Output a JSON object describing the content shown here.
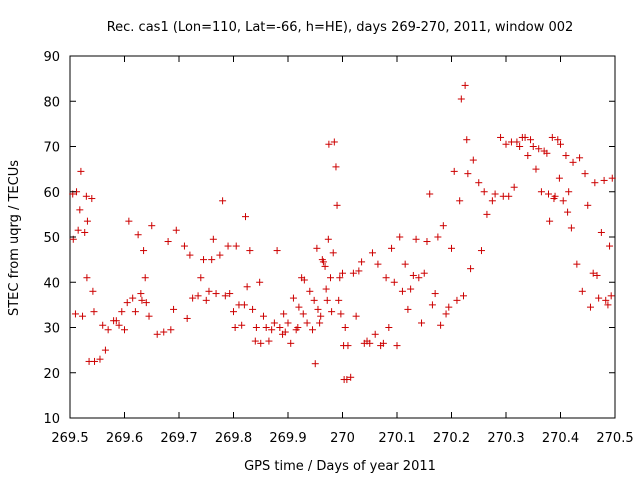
{
  "chart_data": {
    "type": "scatter",
    "title": "Rec. cas1 (Lon=110, Lat=-66, h=HE), days 269-270, 2011, window 002",
    "xlabel": "GPS time / Days of year 2011",
    "ylabel": "STEC from uqrg / TECUs",
    "xlim": [
      269.5,
      270.5
    ],
    "ylim": [
      10,
      90
    ],
    "x_ticks": [
      269.5,
      269.6,
      269.7,
      269.8,
      269.9,
      270.0,
      270.1,
      270.2,
      270.3,
      270.4,
      270.5
    ],
    "x_tick_labels": [
      "269.5",
      "269.6",
      "269.7",
      "269.8",
      "269.9",
      "270",
      "270.1",
      "270.2",
      "270.3",
      "270.4",
      "270.5"
    ],
    "y_ticks": [
      10,
      20,
      30,
      40,
      50,
      60,
      70,
      80,
      90
    ],
    "y_tick_labels": [
      "10",
      "20",
      "30",
      "40",
      "50",
      "60",
      "70",
      "80",
      "90"
    ],
    "grid": false,
    "marker": "plus",
    "color": "#cc0000",
    "points": [
      [
        269.505,
        59.5
      ],
      [
        269.506,
        49.5
      ],
      [
        269.51,
        33
      ],
      [
        269.512,
        60
      ],
      [
        269.515,
        51.5
      ],
      [
        269.518,
        56
      ],
      [
        269.52,
        64.5
      ],
      [
        269.523,
        32.5
      ],
      [
        269.527,
        51
      ],
      [
        269.53,
        59
      ],
      [
        269.531,
        41
      ],
      [
        269.532,
        53.5
      ],
      [
        269.535,
        22.5
      ],
      [
        269.54,
        58.5
      ],
      [
        269.542,
        38
      ],
      [
        269.544,
        33.5
      ],
      [
        269.545,
        22.5
      ],
      [
        269.555,
        23
      ],
      [
        269.56,
        30.5
      ],
      [
        269.565,
        25
      ],
      [
        269.57,
        29.5
      ],
      [
        269.58,
        31.5
      ],
      [
        269.585,
        31.5
      ],
      [
        269.59,
        30.5
      ],
      [
        269.595,
        33.5
      ],
      [
        269.6,
        29.5
      ],
      [
        269.605,
        35.5
      ],
      [
        269.608,
        53.5
      ],
      [
        269.615,
        36.5
      ],
      [
        269.62,
        33.5
      ],
      [
        269.625,
        50.5
      ],
      [
        269.63,
        37.5
      ],
      [
        269.632,
        36
      ],
      [
        269.635,
        47
      ],
      [
        269.638,
        41
      ],
      [
        269.64,
        35.5
      ],
      [
        269.645,
        32.5
      ],
      [
        269.65,
        52.5
      ],
      [
        269.66,
        28.5
      ],
      [
        269.672,
        29
      ],
      [
        269.68,
        49
      ],
      [
        269.685,
        29.5
      ],
      [
        269.69,
        34
      ],
      [
        269.695,
        51.5
      ],
      [
        269.71,
        48
      ],
      [
        269.715,
        32
      ],
      [
        269.72,
        46
      ],
      [
        269.725,
        36.5
      ],
      [
        269.735,
        37
      ],
      [
        269.74,
        41
      ],
      [
        269.745,
        45
      ],
      [
        269.75,
        36
      ],
      [
        269.755,
        38
      ],
      [
        269.76,
        45
      ],
      [
        269.763,
        49.5
      ],
      [
        269.768,
        37.5
      ],
      [
        269.775,
        46
      ],
      [
        269.78,
        58
      ],
      [
        269.785,
        37
      ],
      [
        269.79,
        48
      ],
      [
        269.793,
        37.5
      ],
      [
        269.8,
        33.5
      ],
      [
        269.803,
        30
      ],
      [
        269.805,
        48
      ],
      [
        269.81,
        35
      ],
      [
        269.815,
        30.5
      ],
      [
        269.82,
        35
      ],
      [
        269.822,
        54.5
      ],
      [
        269.825,
        39
      ],
      [
        269.83,
        47
      ],
      [
        269.835,
        34
      ],
      [
        269.84,
        27
      ],
      [
        269.842,
        30
      ],
      [
        269.848,
        40
      ],
      [
        269.85,
        26.5
      ],
      [
        269.855,
        32.5
      ],
      [
        269.86,
        30
      ],
      [
        269.865,
        27
      ],
      [
        269.87,
        29.5
      ],
      [
        269.875,
        31
      ],
      [
        269.88,
        47
      ],
      [
        269.885,
        30
      ],
      [
        269.89,
        28.5
      ],
      [
        269.892,
        33
      ],
      [
        269.895,
        29
      ],
      [
        269.9,
        31
      ],
      [
        269.905,
        26.5
      ],
      [
        269.91,
        36.5
      ],
      [
        269.915,
        29.5
      ],
      [
        269.918,
        30
      ],
      [
        269.92,
        34.5
      ],
      [
        269.925,
        41
      ],
      [
        269.928,
        33
      ],
      [
        269.93,
        40.5
      ],
      [
        269.935,
        31
      ],
      [
        269.94,
        38
      ],
      [
        269.945,
        29.5
      ],
      [
        269.948,
        36
      ],
      [
        269.95,
        22
      ],
      [
        269.953,
        47.5
      ],
      [
        269.955,
        34
      ],
      [
        269.958,
        31
      ],
      [
        269.96,
        32.5
      ],
      [
        269.963,
        45
      ],
      [
        269.965,
        44.5
      ],
      [
        269.968,
        43.5
      ],
      [
        269.97,
        38.5
      ],
      [
        269.972,
        36
      ],
      [
        269.974,
        49.5
      ],
      [
        269.975,
        70.5
      ],
      [
        269.978,
        41
      ],
      [
        269.98,
        33.5
      ],
      [
        269.983,
        46.5
      ],
      [
        269.985,
        71
      ],
      [
        269.988,
        65.5
      ],
      [
        269.99,
        57
      ],
      [
        269.993,
        36
      ],
      [
        269.995,
        41
      ],
      [
        269.997,
        33
      ],
      [
        270.0,
        42
      ],
      [
        270.002,
        26
      ],
      [
        270.003,
        18.5
      ],
      [
        270.005,
        30
      ],
      [
        270.008,
        18.5
      ],
      [
        270.01,
        26
      ],
      [
        270.015,
        19
      ],
      [
        270.02,
        42
      ],
      [
        270.025,
        32.5
      ],
      [
        270.03,
        42.5
      ],
      [
        270.035,
        44.5
      ],
      [
        270.04,
        26.5
      ],
      [
        270.045,
        27
      ],
      [
        270.05,
        26.5
      ],
      [
        270.055,
        46.5
      ],
      [
        270.06,
        28.5
      ],
      [
        270.065,
        44
      ],
      [
        270.07,
        26
      ],
      [
        270.075,
        26.5
      ],
      [
        270.08,
        41
      ],
      [
        270.085,
        30
      ],
      [
        270.09,
        47.5
      ],
      [
        270.095,
        40
      ],
      [
        270.1,
        26
      ],
      [
        270.105,
        50
      ],
      [
        270.11,
        38
      ],
      [
        270.115,
        44
      ],
      [
        270.12,
        34
      ],
      [
        270.125,
        38.5
      ],
      [
        270.13,
        41.5
      ],
      [
        270.135,
        49.5
      ],
      [
        270.14,
        41
      ],
      [
        270.145,
        31
      ],
      [
        270.15,
        42
      ],
      [
        270.155,
        49
      ],
      [
        270.16,
        59.5
      ],
      [
        270.165,
        35
      ],
      [
        270.17,
        37.5
      ],
      [
        270.175,
        50
      ],
      [
        270.18,
        30.5
      ],
      [
        270.185,
        52.5
      ],
      [
        270.19,
        33
      ],
      [
        270.195,
        34.5
      ],
      [
        270.2,
        47.5
      ],
      [
        270.205,
        64.5
      ],
      [
        270.21,
        36
      ],
      [
        270.215,
        58
      ],
      [
        270.218,
        80.5
      ],
      [
        270.222,
        37
      ],
      [
        270.225,
        83.5
      ],
      [
        270.228,
        71.5
      ],
      [
        270.23,
        64
      ],
      [
        270.235,
        43
      ],
      [
        270.24,
        67
      ],
      [
        270.25,
        62
      ],
      [
        270.255,
        47
      ],
      [
        270.26,
        60
      ],
      [
        270.265,
        55
      ],
      [
        270.275,
        58
      ],
      [
        270.28,
        59.5
      ],
      [
        270.29,
        72
      ],
      [
        270.295,
        59
      ],
      [
        270.3,
        70.5
      ],
      [
        270.305,
        59
      ],
      [
        270.31,
        71
      ],
      [
        270.315,
        61
      ],
      [
        270.32,
        71
      ],
      [
        270.325,
        70
      ],
      [
        270.33,
        72
      ],
      [
        270.335,
        72
      ],
      [
        270.34,
        68
      ],
      [
        270.345,
        71.5
      ],
      [
        270.35,
        70
      ],
      [
        270.355,
        65
      ],
      [
        270.36,
        69.5
      ],
      [
        270.365,
        60
      ],
      [
        270.37,
        69
      ],
      [
        270.375,
        68.5
      ],
      [
        270.378,
        59.5
      ],
      [
        270.38,
        53.5
      ],
      [
        270.385,
        72
      ],
      [
        270.388,
        58.5
      ],
      [
        270.39,
        59
      ],
      [
        270.395,
        71.5
      ],
      [
        270.398,
        63
      ],
      [
        270.4,
        70.5
      ],
      [
        270.405,
        58
      ],
      [
        270.41,
        68
      ],
      [
        270.413,
        55.5
      ],
      [
        270.415,
        60
      ],
      [
        270.42,
        52
      ],
      [
        270.423,
        66.5
      ],
      [
        270.43,
        44
      ],
      [
        270.435,
        67.5
      ],
      [
        270.44,
        38
      ],
      [
        270.445,
        64
      ],
      [
        270.45,
        57
      ],
      [
        270.455,
        34.5
      ],
      [
        270.46,
        42
      ],
      [
        270.463,
        62
      ],
      [
        270.467,
        41.5
      ],
      [
        270.47,
        36.5
      ],
      [
        270.475,
        51
      ],
      [
        270.48,
        62.5
      ],
      [
        270.483,
        36
      ],
      [
        270.487,
        35
      ],
      [
        270.49,
        48
      ],
      [
        270.493,
        37
      ],
      [
        270.495,
        63
      ]
    ]
  }
}
